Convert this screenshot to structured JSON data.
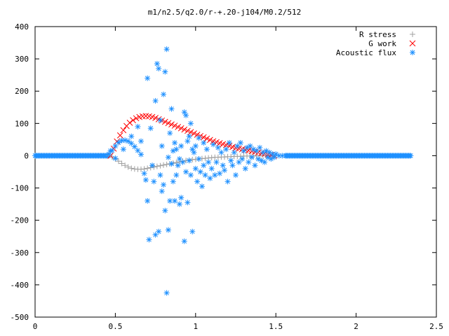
{
  "chart_data": {
    "type": "scatter",
    "title": "m1/n2.5/q2.0/r-+.20-j104/M0.2/512",
    "xlabel": "",
    "ylabel": "",
    "xlim": [
      0,
      2.5
    ],
    "ylim": [
      -500,
      400
    ],
    "x_ticks": [
      "0",
      "0.5",
      "1",
      "1.5",
      "2",
      "2.5"
    ],
    "y_ticks": [
      "400",
      "300",
      "200",
      "100",
      "0",
      "-100",
      "-200",
      "-300",
      "-400",
      "-500"
    ],
    "grid": false,
    "legend_position": "top-right",
    "series": [
      {
        "name": "R stress",
        "marker": "plus",
        "color": "#a0a0a0",
        "points": [
          [
            0.46,
            0
          ],
          [
            0.48,
            -4
          ],
          [
            0.5,
            -10
          ],
          [
            0.52,
            -17
          ],
          [
            0.54,
            -24
          ],
          [
            0.56,
            -30
          ],
          [
            0.58,
            -35
          ],
          [
            0.6,
            -39
          ],
          [
            0.62,
            -41
          ],
          [
            0.64,
            -42
          ],
          [
            0.66,
            -42
          ],
          [
            0.68,
            -41
          ],
          [
            0.7,
            -39
          ],
          [
            0.72,
            -37
          ],
          [
            0.74,
            -35
          ],
          [
            0.76,
            -33
          ],
          [
            0.78,
            -31
          ],
          [
            0.8,
            -29
          ],
          [
            0.82,
            -27
          ],
          [
            0.84,
            -25
          ],
          [
            0.86,
            -23
          ],
          [
            0.88,
            -21
          ],
          [
            0.9,
            -19
          ],
          [
            0.92,
            -17
          ],
          [
            0.94,
            -15
          ],
          [
            0.96,
            -14
          ],
          [
            0.98,
            -12
          ],
          [
            1.0,
            -11
          ],
          [
            1.02,
            -10
          ],
          [
            1.04,
            -9
          ],
          [
            1.06,
            -8
          ],
          [
            1.08,
            -7
          ],
          [
            1.1,
            -6
          ],
          [
            1.12,
            -5
          ],
          [
            1.14,
            -5
          ],
          [
            1.16,
            -4
          ],
          [
            1.18,
            -4
          ],
          [
            1.2,
            -3
          ],
          [
            1.22,
            -3
          ],
          [
            1.24,
            -2
          ],
          [
            1.26,
            -2
          ],
          [
            1.28,
            -2
          ],
          [
            1.3,
            -1
          ],
          [
            1.32,
            -1
          ],
          [
            1.34,
            -1
          ],
          [
            1.36,
            -1
          ],
          [
            1.38,
            0
          ],
          [
            1.4,
            0
          ],
          [
            1.42,
            0
          ],
          [
            1.44,
            0
          ],
          [
            1.46,
            0
          ],
          [
            1.48,
            0
          ]
        ]
      },
      {
        "name": "G work",
        "marker": "cross",
        "color": "#ff0000",
        "points": [
          [
            0.47,
            0
          ],
          [
            0.49,
            22
          ],
          [
            0.51,
            44
          ],
          [
            0.53,
            63
          ],
          [
            0.55,
            79
          ],
          [
            0.57,
            92
          ],
          [
            0.59,
            102
          ],
          [
            0.61,
            110
          ],
          [
            0.63,
            116
          ],
          [
            0.65,
            120
          ],
          [
            0.67,
            122
          ],
          [
            0.69,
            123
          ],
          [
            0.71,
            122
          ],
          [
            0.73,
            120
          ],
          [
            0.75,
            117
          ],
          [
            0.77,
            113
          ],
          [
            0.79,
            109
          ],
          [
            0.81,
            105
          ],
          [
            0.83,
            101
          ],
          [
            0.85,
            97
          ],
          [
            0.87,
            93
          ],
          [
            0.89,
            89
          ],
          [
            0.91,
            85
          ],
          [
            0.93,
            81
          ],
          [
            0.95,
            77
          ],
          [
            0.97,
            73
          ],
          [
            0.99,
            69
          ],
          [
            1.01,
            65
          ],
          [
            1.03,
            61
          ],
          [
            1.05,
            57
          ],
          [
            1.07,
            53
          ],
          [
            1.09,
            49
          ],
          [
            1.11,
            45
          ],
          [
            1.13,
            42
          ],
          [
            1.15,
            39
          ],
          [
            1.17,
            36
          ],
          [
            1.19,
            33
          ],
          [
            1.21,
            30
          ],
          [
            1.23,
            27
          ],
          [
            1.25,
            24
          ],
          [
            1.27,
            22
          ],
          [
            1.29,
            20
          ],
          [
            1.31,
            18
          ],
          [
            1.33,
            16
          ],
          [
            1.35,
            14
          ],
          [
            1.37,
            12
          ],
          [
            1.39,
            10
          ],
          [
            1.41,
            8
          ],
          [
            1.43,
            6
          ],
          [
            1.45,
            4
          ],
          [
            1.47,
            2
          ],
          [
            1.49,
            0
          ]
        ]
      },
      {
        "name": "Acoustic flux",
        "marker": "star",
        "color": "#1e90ff",
        "points": [
          [
            0.46,
            5
          ],
          [
            0.48,
            16
          ],
          [
            0.5,
            30
          ],
          [
            0.52,
            41
          ],
          [
            0.54,
            47
          ],
          [
            0.56,
            48
          ],
          [
            0.58,
            45
          ],
          [
            0.6,
            38
          ],
          [
            0.62,
            28
          ],
          [
            0.64,
            16
          ],
          [
            0.66,
            4
          ],
          [
            0.47,
            15
          ],
          [
            0.5,
            -8
          ],
          [
            0.55,
            20
          ],
          [
            0.6,
            60
          ],
          [
            0.64,
            90
          ],
          [
            0.66,
            45
          ],
          [
            0.68,
            -55
          ],
          [
            0.69,
            -75
          ],
          [
            0.7,
            -140
          ],
          [
            0.7,
            240
          ],
          [
            0.71,
            -260
          ],
          [
            0.72,
            85
          ],
          [
            0.73,
            -30
          ],
          [
            0.74,
            -80
          ],
          [
            0.75,
            -245
          ],
          [
            0.75,
            170
          ],
          [
            0.76,
            285
          ],
          [
            0.77,
            -235
          ],
          [
            0.77,
            270
          ],
          [
            0.78,
            -60
          ],
          [
            0.78,
            110
          ],
          [
            0.79,
            -110
          ],
          [
            0.79,
            30
          ],
          [
            0.8,
            -90
          ],
          [
            0.8,
            190
          ],
          [
            0.81,
            260
          ],
          [
            0.81,
            -170
          ],
          [
            0.82,
            330
          ],
          [
            0.82,
            -425
          ],
          [
            0.83,
            -230
          ],
          [
            0.83,
            -5
          ],
          [
            0.84,
            -140
          ],
          [
            0.84,
            70
          ],
          [
            0.85,
            145
          ],
          [
            0.85,
            -25
          ],
          [
            0.86,
            -80
          ],
          [
            0.86,
            15
          ],
          [
            0.87,
            -140
          ],
          [
            0.87,
            40
          ],
          [
            0.88,
            -60
          ],
          [
            0.88,
            20
          ],
          [
            0.89,
            -30
          ],
          [
            0.9,
            -150
          ],
          [
            0.9,
            -10
          ],
          [
            0.91,
            30
          ],
          [
            0.91,
            -130
          ],
          [
            0.92,
            -20
          ],
          [
            0.93,
            135
          ],
          [
            0.93,
            -265
          ],
          [
            0.94,
            125
          ],
          [
            0.94,
            -50
          ],
          [
            0.95,
            -145
          ],
          [
            0.95,
            45
          ],
          [
            0.96,
            -15
          ],
          [
            0.96,
            60
          ],
          [
            0.97,
            100
          ],
          [
            0.97,
            -60
          ],
          [
            0.98,
            -235
          ],
          [
            0.98,
            20
          ],
          [
            0.99,
            10
          ],
          [
            1.0,
            -40
          ],
          [
            1.0,
            30
          ],
          [
            1.01,
            -80
          ],
          [
            1.02,
            55
          ],
          [
            1.02,
            -10
          ],
          [
            1.03,
            -50
          ],
          [
            1.04,
            -95
          ],
          [
            1.05,
            -30
          ],
          [
            1.05,
            40
          ],
          [
            1.06,
            -60
          ],
          [
            1.07,
            20
          ],
          [
            1.08,
            -20
          ],
          [
            1.09,
            -70
          ],
          [
            1.1,
            -40
          ],
          [
            1.11,
            35
          ],
          [
            1.12,
            -60
          ],
          [
            1.13,
            -20
          ],
          [
            1.14,
            25
          ],
          [
            1.15,
            -55
          ],
          [
            1.16,
            10
          ],
          [
            1.17,
            -30
          ],
          [
            1.18,
            -45
          ],
          [
            1.19,
            20
          ],
          [
            1.2,
            -80
          ],
          [
            1.21,
            40
          ],
          [
            1.22,
            -15
          ],
          [
            1.23,
            -30
          ],
          [
            1.24,
            10
          ],
          [
            1.25,
            -60
          ],
          [
            1.26,
            30
          ],
          [
            1.27,
            -20
          ],
          [
            1.28,
            40
          ],
          [
            1.29,
            -10
          ],
          [
            1.3,
            15
          ],
          [
            1.31,
            -40
          ],
          [
            1.32,
            25
          ],
          [
            1.33,
            -20
          ],
          [
            1.34,
            30
          ],
          [
            1.35,
            -5
          ],
          [
            1.36,
            20
          ],
          [
            1.37,
            -30
          ],
          [
            1.38,
            15
          ],
          [
            1.39,
            -10
          ],
          [
            1.4,
            25
          ],
          [
            1.41,
            -15
          ],
          [
            1.42,
            10
          ],
          [
            1.43,
            -20
          ],
          [
            1.44,
            15
          ],
          [
            1.45,
            -5
          ],
          [
            1.46,
            10
          ],
          [
            1.47,
            -10
          ],
          [
            1.48,
            5
          ],
          [
            1.49,
            -5
          ],
          [
            1.5,
            5
          ],
          [
            1.52,
            0
          ],
          [
            1.54,
            0
          ],
          [
            1.56,
            0
          ]
        ]
      }
    ],
    "flat_series": {
      "name": "Acoustic flux",
      "y": 0,
      "segments": [
        [
          0,
          0.46
        ],
        [
          1.56,
          2.34
        ]
      ]
    }
  }
}
